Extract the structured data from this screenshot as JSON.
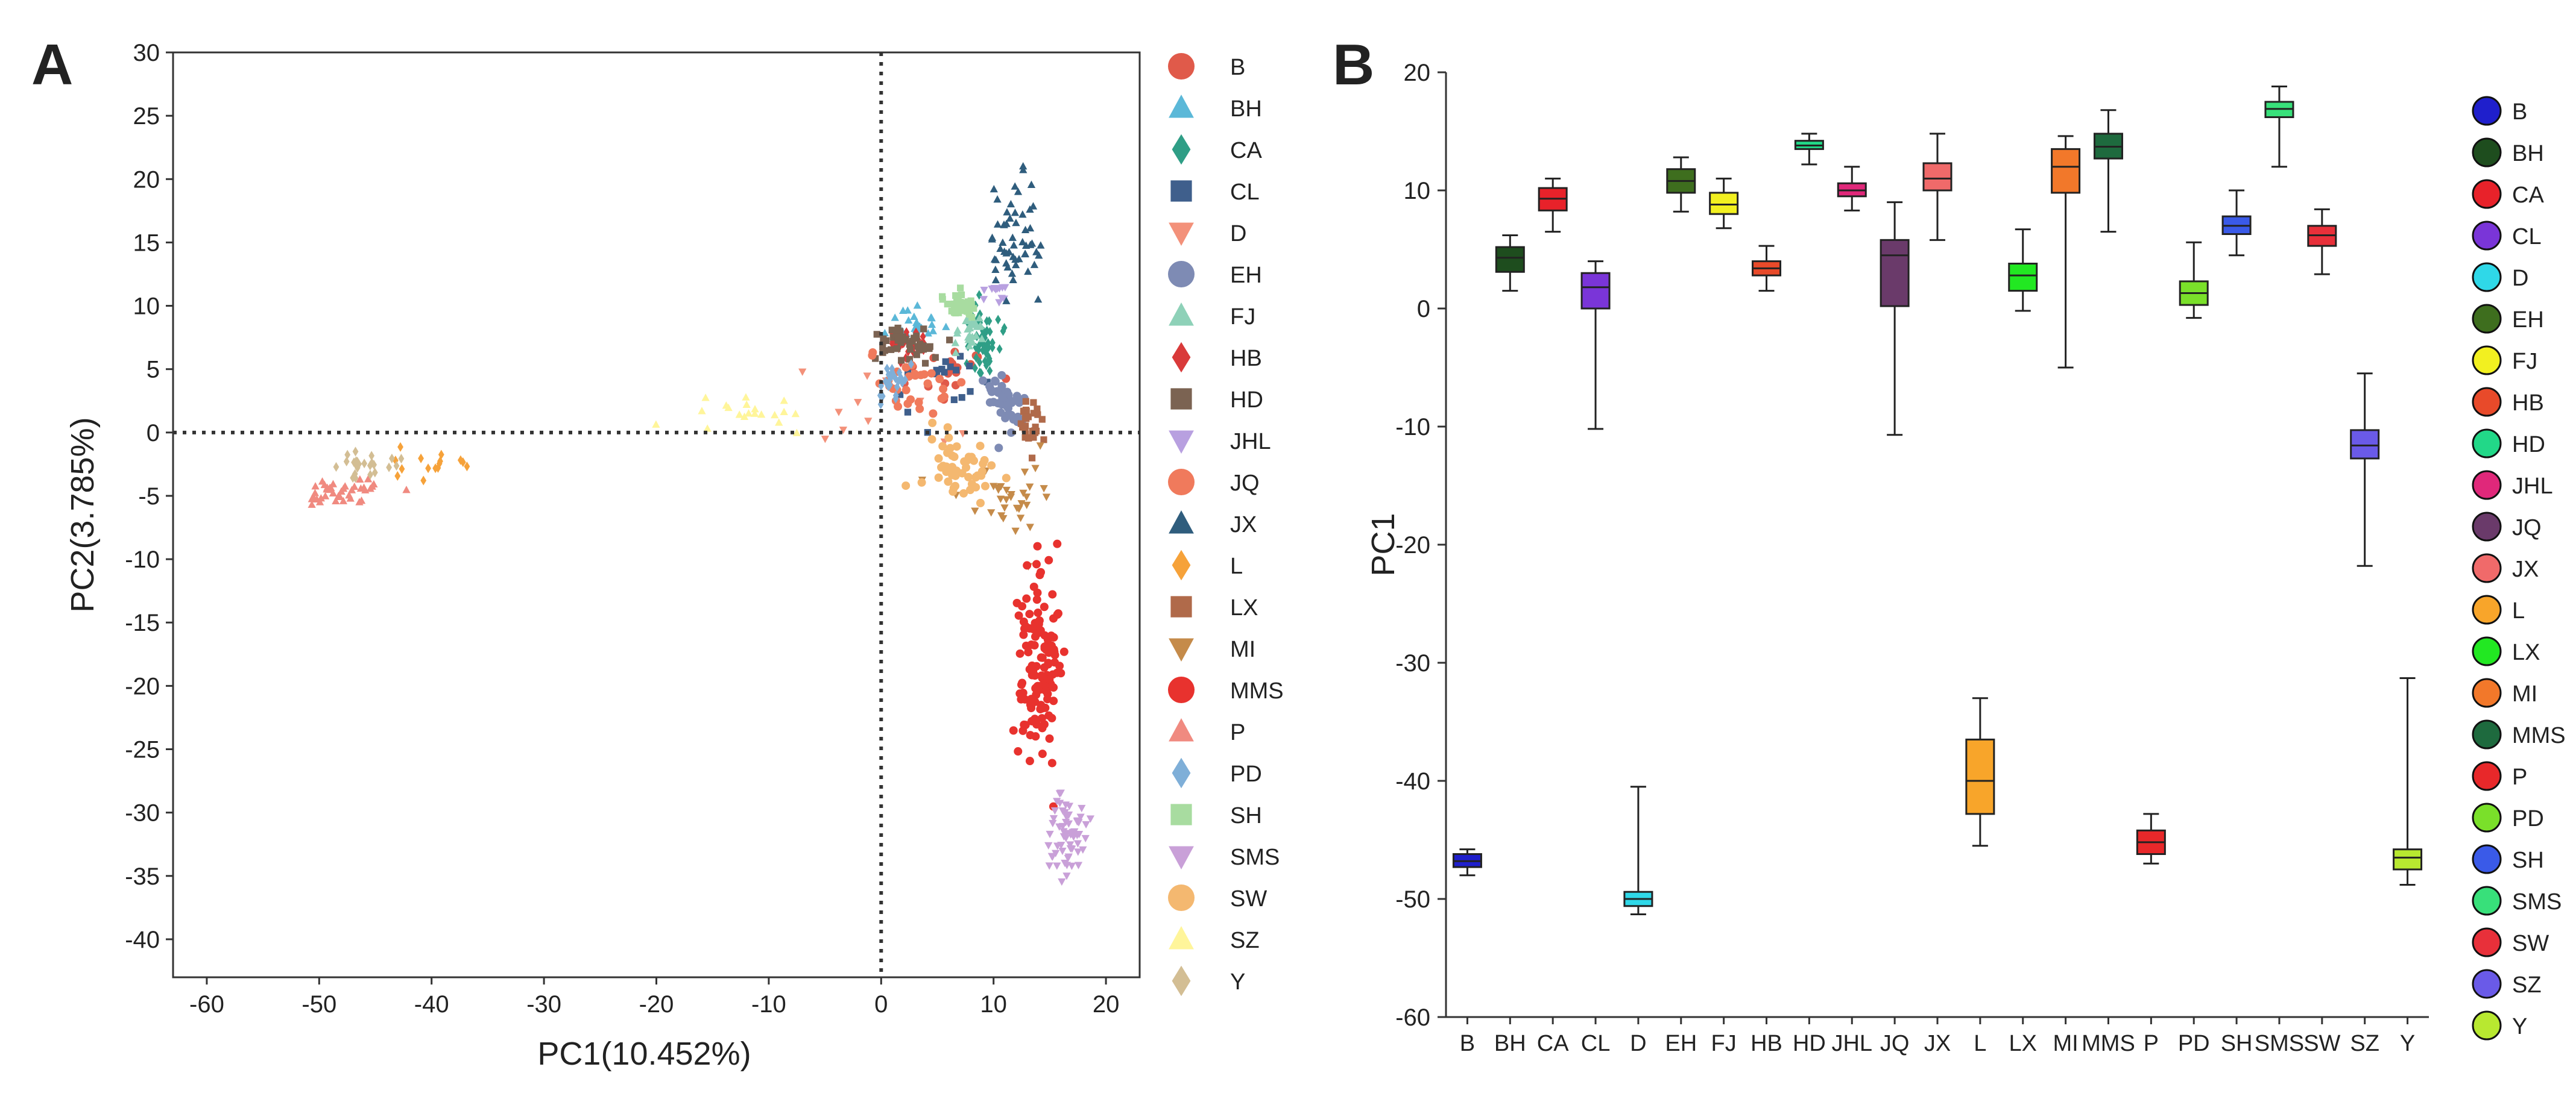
{
  "figure": {
    "panel_a_label": "A",
    "panel_b_label": "B"
  },
  "chart_data": [
    {
      "type": "scatter",
      "panel": "A",
      "xlabel": "PC1(10.452%)",
      "ylabel": "PC2(3.785%)",
      "xlim": [
        -63,
        23
      ],
      "ylim": [
        -43,
        30
      ],
      "xticks": [
        -60,
        -50,
        -40,
        -30,
        -20,
        -10,
        0,
        10,
        20
      ],
      "yticks": [
        30,
        25,
        20,
        15,
        10,
        5,
        0,
        -5,
        -10,
        -15,
        -20,
        -25,
        -30,
        -35,
        -40
      ],
      "reference_lines": {
        "x": 0,
        "y": 0,
        "style": "dotted"
      },
      "legend_position": "right",
      "series": [
        {
          "name": "B",
          "marker": "circle",
          "color": "#E05A4A",
          "center": [
            6,
            5
          ],
          "spread": [
            3,
            2
          ],
          "n": 18
        },
        {
          "name": "BH",
          "marker": "triangle-up",
          "color": "#5BB8D8",
          "center": [
            3.5,
            8.5
          ],
          "spread": [
            2,
            1.2
          ],
          "n": 25
        },
        {
          "name": "CA",
          "marker": "diamond",
          "color": "#2F9E86",
          "center": [
            9,
            7.5
          ],
          "spread": [
            1.3,
            2.5
          ],
          "n": 55
        },
        {
          "name": "CL",
          "marker": "square",
          "color": "#3F5F8C",
          "center": [
            7,
            5
          ],
          "spread": [
            4,
            3
          ],
          "n": 18
        },
        {
          "name": "D",
          "marker": "triangle-down",
          "color": "#F3917A",
          "center": [
            -1,
            1.5
          ],
          "spread": [
            5,
            3
          ],
          "n": 12
        },
        {
          "name": "EH",
          "marker": "circle",
          "color": "#7E8BB4",
          "center": [
            11,
            2.5
          ],
          "spread": [
            1.5,
            2
          ],
          "n": 45
        },
        {
          "name": "FJ",
          "marker": "triangle-up",
          "color": "#8ED1B8",
          "center": [
            8,
            8
          ],
          "spread": [
            1.2,
            1
          ],
          "n": 30
        },
        {
          "name": "HB",
          "marker": "diamond",
          "color": "#D93A3A",
          "center": [
            2.5,
            7
          ],
          "spread": [
            1.5,
            0.8
          ],
          "n": 30
        },
        {
          "name": "HD",
          "marker": "square",
          "color": "#7B6352",
          "center": [
            2,
            7
          ],
          "spread": [
            2.5,
            1.2
          ],
          "n": 40
        },
        {
          "name": "JHL",
          "marker": "triangle-down",
          "color": "#B8A0E0",
          "center": [
            10,
            11
          ],
          "spread": [
            1,
            1
          ],
          "n": 12
        },
        {
          "name": "JQ",
          "marker": "circle",
          "color": "#F07A5C",
          "center": [
            2,
            3.5
          ],
          "spread": [
            4,
            2
          ],
          "n": 30
        },
        {
          "name": "JX",
          "marker": "triangle-up",
          "color": "#2F5D7D",
          "center": [
            12,
            15
          ],
          "spread": [
            2,
            4
          ],
          "n": 55
        },
        {
          "name": "L",
          "marker": "diamond",
          "color": "#F6A23A",
          "center": [
            -41,
            -2.5
          ],
          "spread": [
            3,
            1
          ],
          "n": 15
        },
        {
          "name": "LX",
          "marker": "square",
          "color": "#B06A4A",
          "center": [
            13,
            1
          ],
          "spread": [
            1,
            1.5
          ],
          "n": 30
        },
        {
          "name": "MI",
          "marker": "triangle-down",
          "color": "#C58B4A",
          "center": [
            12,
            -5
          ],
          "spread": [
            4,
            3
          ],
          "n": 35
        },
        {
          "name": "MMS",
          "marker": "circle",
          "color": "#E8322E",
          "center": [
            14,
            -18
          ],
          "spread": [
            1.5,
            6
          ],
          "n": 140
        },
        {
          "name": "P",
          "marker": "triangle-up",
          "color": "#F08A80",
          "center": [
            -48,
            -4.5
          ],
          "spread": [
            3,
            1
          ],
          "n": 40
        },
        {
          "name": "PD",
          "marker": "diamond",
          "color": "#7FAFD8",
          "center": [
            1,
            4
          ],
          "spread": [
            1.5,
            1.3
          ],
          "n": 25
        },
        {
          "name": "SH",
          "marker": "square",
          "color": "#A8DCA0",
          "center": [
            7,
            10
          ],
          "spread": [
            1.5,
            0.8
          ],
          "n": 40
        },
        {
          "name": "SMS",
          "marker": "triangle-down",
          "color": "#C9A0D8",
          "center": [
            16.5,
            -32
          ],
          "spread": [
            1.2,
            3
          ],
          "n": 60
        },
        {
          "name": "SW",
          "marker": "circle",
          "color": "#F4B870",
          "center": [
            7,
            -3
          ],
          "spread": [
            3,
            2.5
          ],
          "n": 50
        },
        {
          "name": "SZ",
          "marker": "triangle-up",
          "color": "#FFF59A",
          "center": [
            -12,
            1.5
          ],
          "spread": [
            5,
            1.3
          ],
          "n": 20
        },
        {
          "name": "Y",
          "marker": "diamond",
          "color": "#D3BE94",
          "center": [
            -46,
            -2.5
          ],
          "spread": [
            2.5,
            1
          ],
          "n": 25
        }
      ]
    },
    {
      "type": "box",
      "panel": "B",
      "xlabel": "",
      "ylabel": "PC1",
      "ylim": [
        -60,
        20
      ],
      "yticks": [
        20,
        10,
        0,
        -10,
        -20,
        -30,
        -40,
        -50,
        -60
      ],
      "legend_position": "right",
      "categories": [
        "B",
        "BH",
        "CA",
        "CL",
        "D",
        "EH",
        "FJ",
        "HB",
        "HD",
        "JHL",
        "JQ",
        "JX",
        "L",
        "LX",
        "MI",
        "MMS",
        "P",
        "PD",
        "SH",
        "SMS",
        "SW",
        "SZ",
        "Y"
      ],
      "boxes": [
        {
          "name": "B",
          "color": "#1F1FCC",
          "min": -48,
          "q1": -47.3,
          "median": -46.8,
          "q3": -46.2,
          "max": -45.8
        },
        {
          "name": "BH",
          "color": "#1E4D1E",
          "min": 1.5,
          "q1": 3.1,
          "median": 4.3,
          "q3": 5.2,
          "max": 6.2
        },
        {
          "name": "CA",
          "color": "#E8222A",
          "min": 6.5,
          "q1": 8.3,
          "median": 9.3,
          "q3": 10.2,
          "max": 11
        },
        {
          "name": "CL",
          "color": "#7A35D8",
          "min": -10.2,
          "q1": 0,
          "median": 1.8,
          "q3": 3,
          "max": 4
        },
        {
          "name": "D",
          "color": "#2FD8E8",
          "min": -51.3,
          "q1": -50.6,
          "median": -50,
          "q3": -49.4,
          "max": -40.5
        },
        {
          "name": "EH",
          "color": "#3E6E1E",
          "min": 8.2,
          "q1": 9.8,
          "median": 10.8,
          "q3": 11.8,
          "max": 12.8
        },
        {
          "name": "FJ",
          "color": "#F2F020",
          "min": 6.8,
          "q1": 8,
          "median": 8.8,
          "q3": 9.8,
          "max": 11
        },
        {
          "name": "HB",
          "color": "#E84A2A",
          "min": 1.5,
          "q1": 2.8,
          "median": 3.4,
          "q3": 4,
          "max": 5.3
        },
        {
          "name": "HD",
          "color": "#22D888",
          "min": 12.2,
          "q1": 13.5,
          "median": 13.8,
          "q3": 14.2,
          "max": 14.8
        },
        {
          "name": "JHL",
          "color": "#E0287A",
          "min": 8.3,
          "q1": 9.5,
          "median": 10,
          "q3": 10.6,
          "max": 12
        },
        {
          "name": "JQ",
          "color": "#6A3A6A",
          "min": -10.7,
          "q1": 0.2,
          "median": 4.5,
          "q3": 5.8,
          "max": 9
        },
        {
          "name": "JX",
          "color": "#F06A6A",
          "min": 5.8,
          "q1": 10,
          "median": 11,
          "q3": 12.3,
          "max": 14.8
        },
        {
          "name": "L",
          "color": "#F8A52A",
          "min": -45.5,
          "q1": -42.8,
          "median": -40,
          "q3": -36.5,
          "max": -33
        },
        {
          "name": "LX",
          "color": "#22E822",
          "min": -0.2,
          "q1": 1.5,
          "median": 2.8,
          "q3": 3.8,
          "max": 6.7
        },
        {
          "name": "MI",
          "color": "#F2782A",
          "min": -5,
          "q1": 9.8,
          "median": 12,
          "q3": 13.5,
          "max": 14.6
        },
        {
          "name": "MMS",
          "color": "#1E6A3E",
          "min": 6.5,
          "q1": 12.7,
          "median": 13.7,
          "q3": 14.8,
          "max": 16.8
        },
        {
          "name": "P",
          "color": "#E8282A",
          "min": -47,
          "q1": -46.2,
          "median": -45.2,
          "q3": -44.2,
          "max": -42.8
        },
        {
          "name": "PD",
          "color": "#7AE02A",
          "min": -0.8,
          "q1": 0.3,
          "median": 1.3,
          "q3": 2.3,
          "max": 5.6
        },
        {
          "name": "SH",
          "color": "#3A5AE8",
          "min": 4.5,
          "q1": 6.3,
          "median": 7,
          "q3": 7.8,
          "max": 10
        },
        {
          "name": "SMS",
          "color": "#38E07A",
          "min": 12,
          "q1": 16.2,
          "median": 16.9,
          "q3": 17.5,
          "max": 18.8
        },
        {
          "name": "SW",
          "color": "#E8303A",
          "min": 2.9,
          "q1": 5.3,
          "median": 6.2,
          "q3": 7,
          "max": 8.4
        },
        {
          "name": "SZ",
          "color": "#6A5AE8",
          "min": -21.8,
          "q1": -12.7,
          "median": -11.6,
          "q3": -10.3,
          "max": -5.5
        },
        {
          "name": "Y",
          "color": "#B8E830",
          "min": -48.8,
          "q1": -47.5,
          "median": -46.5,
          "q3": -45.8,
          "max": -31.3
        }
      ]
    }
  ]
}
